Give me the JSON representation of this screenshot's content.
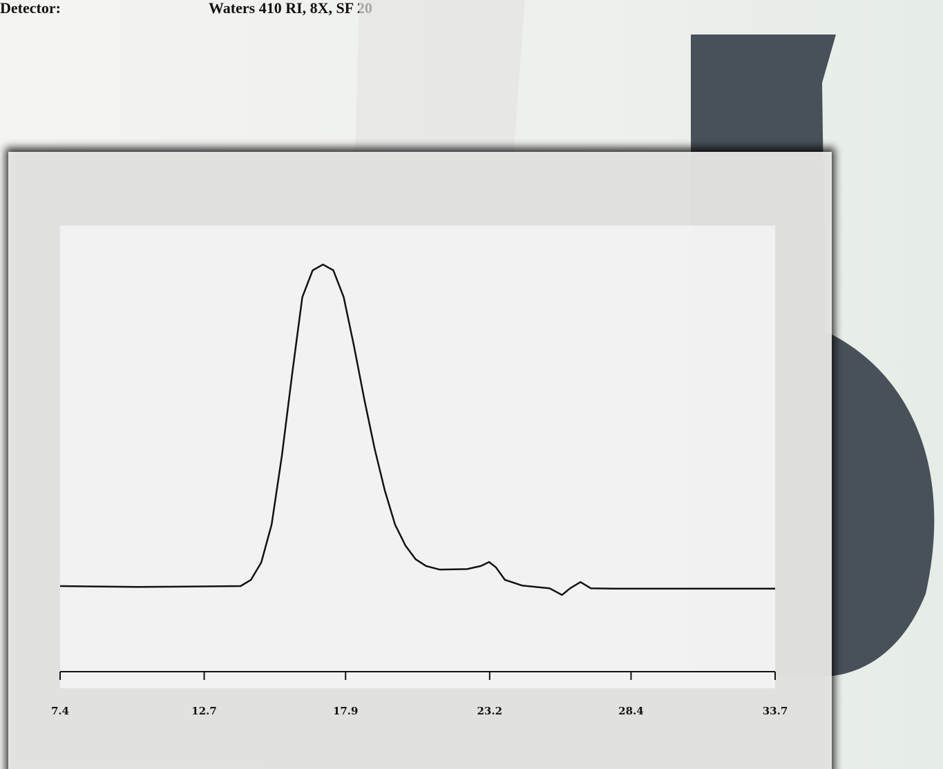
{
  "header": {
    "label": "Detector:",
    "value": "Waters 410 RI, 8X, SF 20"
  },
  "chart_data": {
    "type": "line",
    "x": [
      7.4,
      10.25,
      14.04,
      14.42,
      14.8,
      15.18,
      15.56,
      15.94,
      16.31,
      16.69,
      17.07,
      17.45,
      17.83,
      18.21,
      18.59,
      18.97,
      19.34,
      19.72,
      20.1,
      20.48,
      20.86,
      21.36,
      22.37,
      22.88,
      23.18,
      23.43,
      23.76,
      24.4,
      25.4,
      25.86,
      26.16,
      26.54,
      26.92,
      27.93,
      30.46,
      33.7
    ],
    "values": [
      19.2,
      19,
      19.2,
      20.6,
      24.5,
      33,
      48.5,
      67,
      84,
      90,
      91.3,
      90,
      84,
      73,
      61,
      50,
      40.7,
      33,
      28.3,
      25.2,
      23.7,
      22.9,
      23,
      23.7,
      24.6,
      23.4,
      20.6,
      19.3,
      18.7,
      17.2,
      18.7,
      20.1,
      18.7,
      18.6,
      18.6,
      18.6
    ],
    "color": "#111111",
    "xlim": [
      7.4,
      33.7
    ],
    "xticks": [
      7.4,
      12.7,
      17.9,
      23.2,
      28.4,
      33.7
    ],
    "ylim": [
      0,
      100
    ]
  }
}
